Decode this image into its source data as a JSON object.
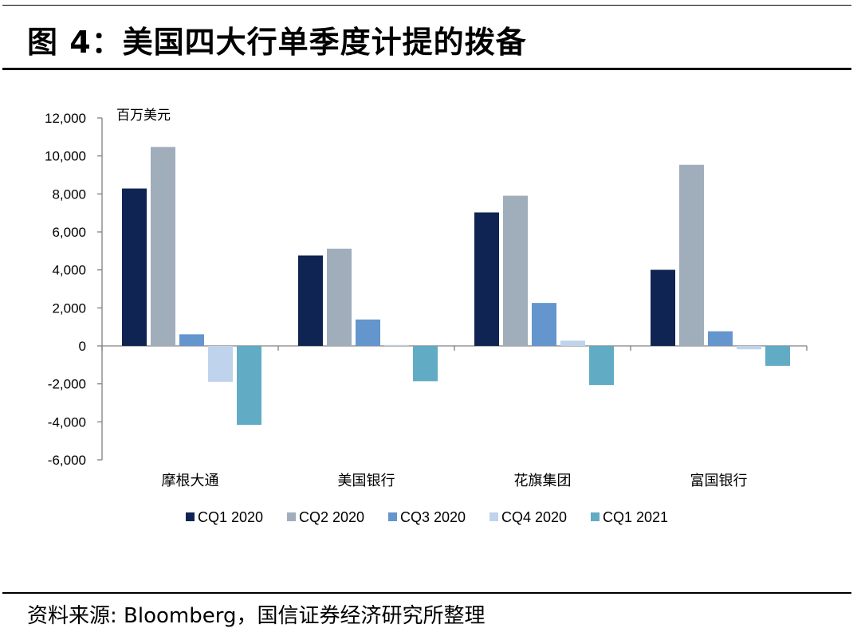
{
  "figure": {
    "title": "图 4：美国四大行单季度计提的拨备",
    "source": "资料来源: Bloomberg，国信证券经济研究所整理"
  },
  "chart_data": {
    "type": "bar",
    "unit_label": "百万美元",
    "categories": [
      "摩根大通",
      "美国银行",
      "花旗集团",
      "富国银行"
    ],
    "series": [
      {
        "name": "CQ1 2020",
        "color": "#0f2452",
        "values": [
          8285,
          4761,
          7027,
          4005
        ]
      },
      {
        "name": "CQ2 2020",
        "color": "#a0adbb",
        "values": [
          10473,
          5117,
          7906,
          9534
        ]
      },
      {
        "name": "CQ3 2020",
        "color": "#6495cd",
        "values": [
          611,
          1389,
          2260,
          769
        ]
      },
      {
        "name": "CQ4 2020",
        "color": "#bfd3ec",
        "values": [
          -1889,
          53,
          276,
          -179
        ]
      },
      {
        "name": "CQ1 2021",
        "color": "#62abc4",
        "values": [
          -4156,
          -1860,
          -2062,
          -1048
        ]
      }
    ],
    "ylim": [
      -6000,
      12000
    ],
    "yticks": [
      -6000,
      -4000,
      -2000,
      0,
      2000,
      4000,
      6000,
      8000,
      10000,
      12000
    ],
    "ytick_labels": [
      "-6,000",
      "-4,000",
      "-2,000",
      "0",
      "2,000",
      "4,000",
      "6,000",
      "8,000",
      "10,000",
      "12,000"
    ],
    "xlabel": "",
    "ylabel": "",
    "legend_position": "bottom",
    "grid": false
  }
}
